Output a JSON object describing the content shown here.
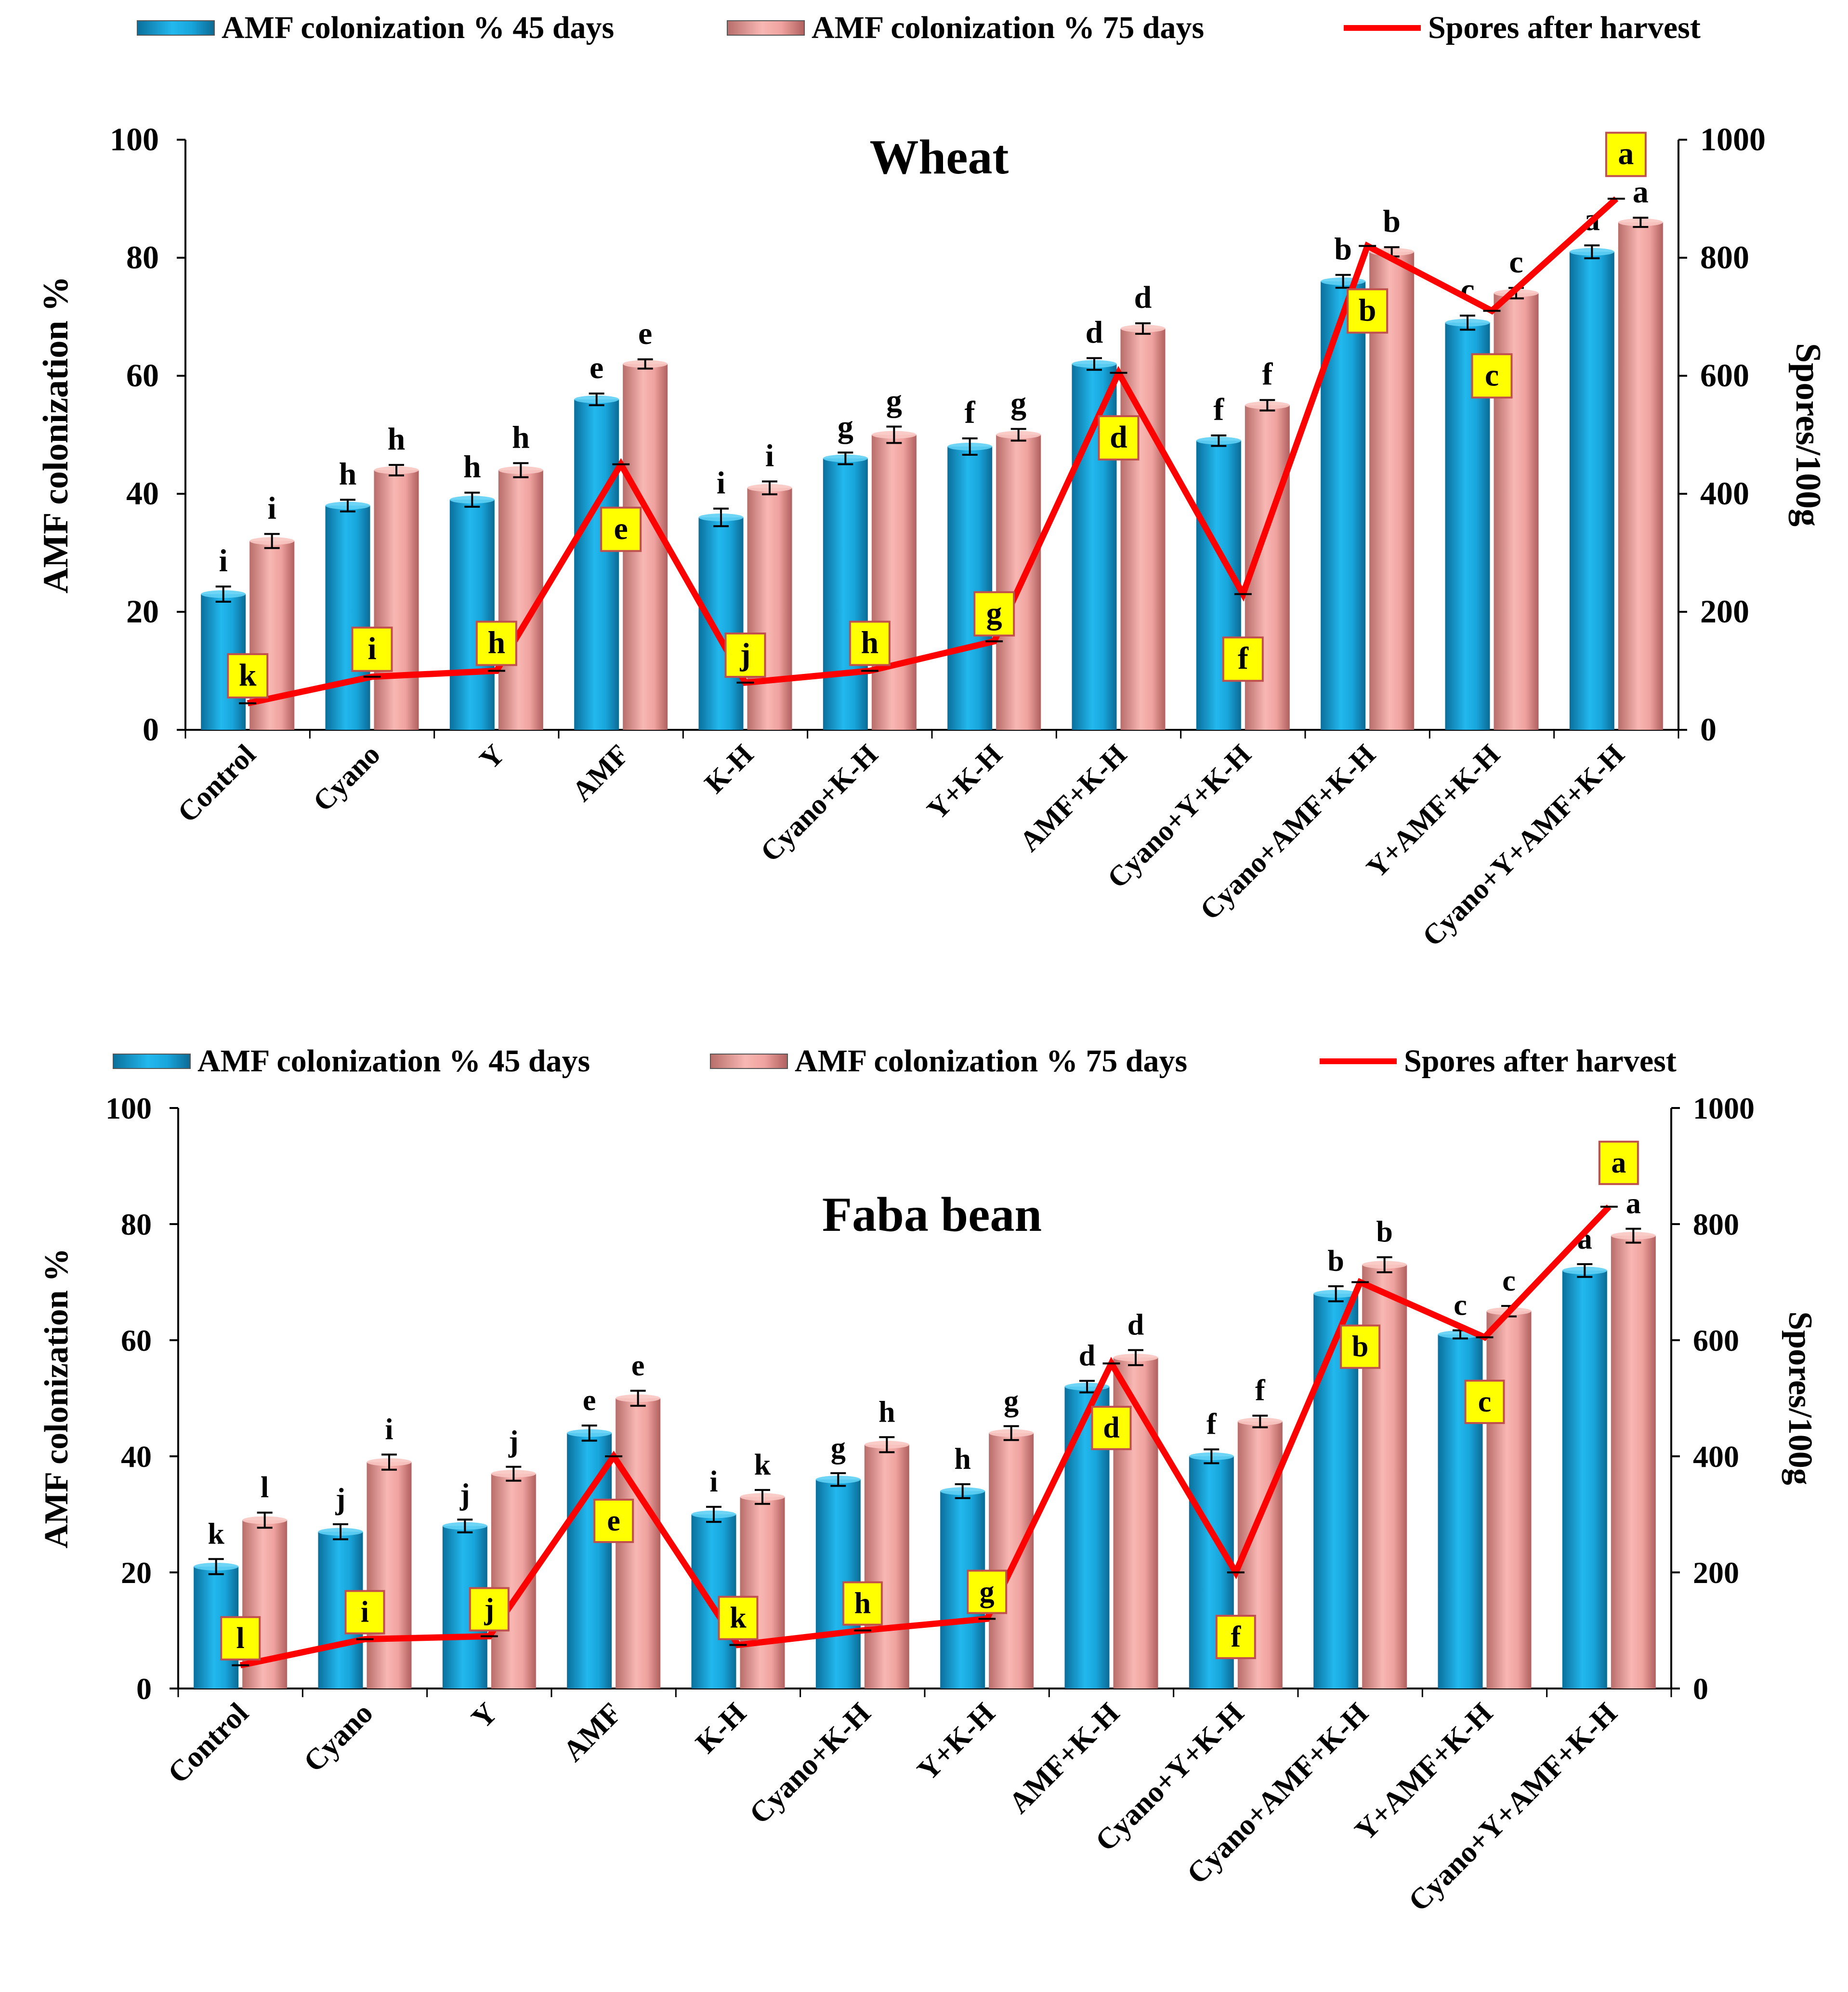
{
  "chart_data": [
    {
      "type": "bar",
      "title": "Wheat",
      "xlabel": "",
      "ylabel": "AMF colonization %",
      "ylabel_right": "Spores/100g",
      "ylim": [
        0,
        100
      ],
      "ylim_right": [
        0,
        1000
      ],
      "yticks": [
        "0",
        "20",
        "40",
        "60",
        "80",
        "100"
      ],
      "yticks_right": [
        "0",
        "200",
        "400",
        "600",
        "800",
        "1000"
      ],
      "categories": [
        "Control",
        "Cyano",
        "Y",
        "AMF",
        "K-H",
        "Cyano+K-H",
        "Y+K-H",
        "AMF+K-H",
        "Cyano+Y+K-H",
        "Cyano+AMF+K-H",
        "Y+AMF+K-H",
        "Cyano+Y+AMF+K-H"
      ],
      "series": [
        {
          "name": "AMF  colonization % 45 days",
          "kind": "bar",
          "axis": "left",
          "color": "#1aa3d8",
          "values": [
            23,
            38,
            39,
            56,
            36,
            46,
            48,
            62,
            49,
            76,
            69,
            81
          ],
          "errors": [
            0.8,
            0.5,
            0.7,
            0.5,
            1.0,
            0.5,
            0.9,
            0.5,
            0.4,
            0.6,
            0.7,
            0.6
          ],
          "letters": [
            "i",
            "h",
            "h",
            "e",
            "i",
            "g",
            "f",
            "d",
            "f",
            "b",
            "c",
            "a"
          ]
        },
        {
          "name": "AMF  colonization % 75 days",
          "kind": "bar",
          "axis": "left",
          "color": "#f0a4a0",
          "values": [
            32,
            44,
            44,
            62,
            41,
            50,
            50,
            68,
            55,
            81,
            74,
            86
          ],
          "errors": [
            0.7,
            0.4,
            0.7,
            0.3,
            0.6,
            0.9,
            0.5,
            0.4,
            0.4,
            0.3,
            0.4,
            0.3
          ],
          "letters": [
            "i",
            "h",
            "h",
            "e",
            "i",
            "g",
            "g",
            "d",
            "f",
            "b",
            "c",
            "a"
          ]
        },
        {
          "name": "Spores after harvest",
          "kind": "line",
          "axis": "right",
          "color": "#ff0000",
          "values": [
            45,
            90,
            100,
            450,
            80,
            100,
            150,
            605,
            230,
            820,
            710,
            900
          ],
          "letters": [
            "k",
            "i",
            "h",
            "e",
            "j",
            "h",
            "g",
            "d",
            "f",
            "b",
            "c",
            "a"
          ]
        }
      ]
    },
    {
      "type": "bar",
      "title": "Faba bean",
      "xlabel": "",
      "ylabel": "AMF colonization %",
      "ylabel_right": "Spores/100g",
      "ylim": [
        0,
        100
      ],
      "ylim_right": [
        0,
        1000
      ],
      "yticks": [
        "0",
        "20",
        "40",
        "60",
        "80",
        "100"
      ],
      "yticks_right": [
        "0",
        "200",
        "400",
        "600",
        "800",
        "1000"
      ],
      "categories": [
        "Control",
        "Cyano",
        "Y",
        "AMF",
        "K-H",
        "Cyano+K-H",
        "Y+K-H",
        "AMF+K-H",
        "Cyano+Y+K-H",
        "Cyano+AMF+K-H",
        "Y+AMF+K-H",
        "Cyano+Y+AMF+K-H"
      ],
      "series": [
        {
          "name": "AMF  colonization % 45 days",
          "kind": "bar",
          "axis": "left",
          "color": "#1aa3d8",
          "values": [
            21,
            27,
            28,
            44,
            30,
            36,
            34,
            52,
            40,
            68,
            61,
            72
          ],
          "errors": [
            0.8,
            0.8,
            0.6,
            0.8,
            0.8,
            0.6,
            0.7,
            0.5,
            0.7,
            0.8,
            0.2,
            0.6
          ],
          "letters": [
            "k",
            "j",
            "j",
            "e",
            "i",
            "g",
            "h",
            "d",
            "f",
            "b",
            "c",
            "a"
          ]
        },
        {
          "name": "AMF  colonization % 75 days",
          "kind": "bar",
          "axis": "left",
          "color": "#f0a4a0",
          "values": [
            29,
            39,
            37,
            50,
            33,
            42,
            44,
            57,
            46,
            73,
            65,
            78
          ],
          "errors": [
            0.8,
            0.8,
            0.7,
            0.8,
            0.7,
            0.8,
            0.7,
            0.8,
            0.5,
            0.8,
            0.4,
            0.7
          ],
          "letters": [
            "l",
            "i",
            "j",
            "e",
            "k",
            "h",
            "g",
            "d",
            "f",
            "b",
            "c",
            "a"
          ]
        },
        {
          "name": "Spores after harvest",
          "kind": "line",
          "axis": "right",
          "color": "#ff0000",
          "values": [
            40,
            85,
            90,
            400,
            75,
            100,
            120,
            560,
            200,
            700,
            605,
            830
          ],
          "letters": [
            "l",
            "i",
            "j",
            "e",
            "k",
            "h",
            "g",
            "d",
            "f",
            "b",
            "c",
            "a"
          ]
        }
      ]
    }
  ]
}
